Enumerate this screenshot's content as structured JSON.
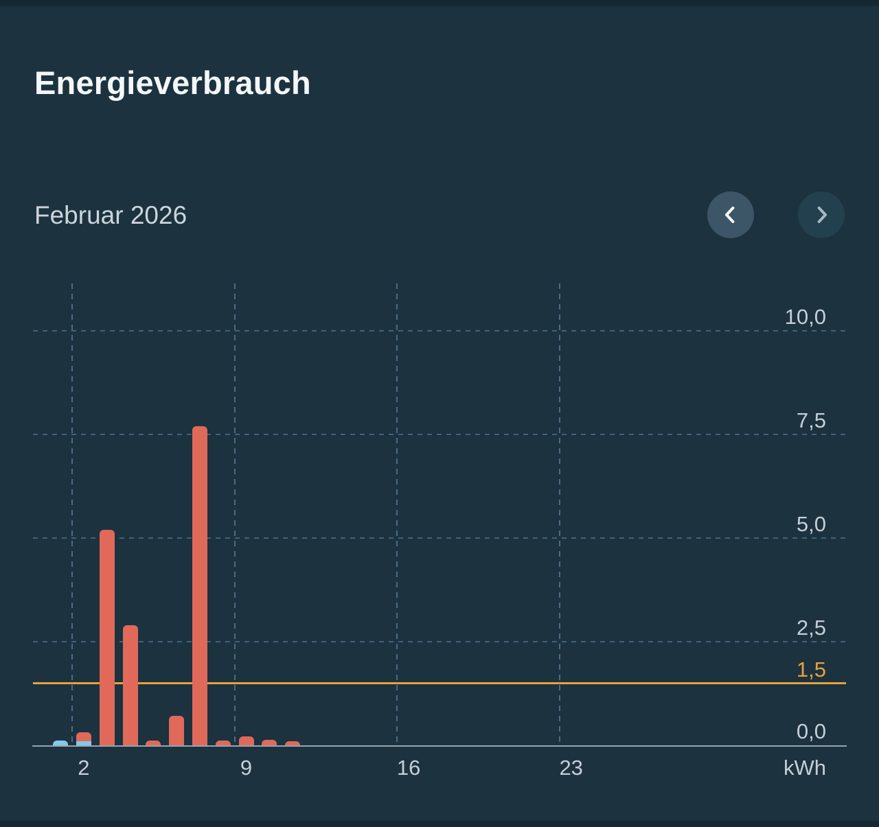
{
  "page": {
    "title": "Energieverbrauch"
  },
  "period": {
    "label": "Februar 2026",
    "prev_button": {
      "icon": "chevron-left",
      "enabled": true
    },
    "next_button": {
      "icon": "chevron-right",
      "enabled": false
    }
  },
  "colors": {
    "background": "#1c323f",
    "edge_strip": "#142833",
    "title_text": "#f3f7f9",
    "month_text": "#cbd5dc",
    "axis_text": "#c4cfd7",
    "grid_line": "#44617b",
    "grid_line_vertical": "#4d6b84",
    "axis_line": "#97a5ae",
    "threshold_line": "#e8a23c",
    "bar_red": "#e0695a",
    "bar_blue": "#87c7eb",
    "nav_active_bg": "#3c5668",
    "nav_active_icon": "#ffffff",
    "nav_inactive_bg": "#23404f",
    "nav_inactive_icon": "#a4bac5"
  },
  "chart_data": {
    "type": "bar",
    "stacked": true,
    "title": "Energieverbrauch",
    "period": "Februar 2026",
    "unit": "kWh",
    "ylim": [
      0,
      11.1
    ],
    "grid": true,
    "yticks": [
      {
        "value": 10.0,
        "label": "10,0"
      },
      {
        "value": 7.5,
        "label": "7,5"
      },
      {
        "value": 5.0,
        "label": "5,0"
      },
      {
        "value": 2.5,
        "label": "2,5"
      }
    ],
    "baseline": {
      "value": 0.0,
      "label": "0,0"
    },
    "threshold": {
      "value": 1.5,
      "label": "1,5"
    },
    "xticks_days": [
      2,
      9,
      16,
      23
    ],
    "days_in_month": 28,
    "bars": [
      {
        "day": 1,
        "segments": [
          {
            "series": "blue",
            "value": 0.12
          }
        ]
      },
      {
        "day": 2,
        "segments": [
          {
            "series": "blue",
            "value": 0.1
          },
          {
            "series": "red",
            "value": 0.22
          }
        ]
      },
      {
        "day": 3,
        "segments": [
          {
            "series": "red",
            "value": 5.2
          }
        ]
      },
      {
        "day": 4,
        "segments": [
          {
            "series": "red",
            "value": 2.9
          }
        ]
      },
      {
        "day": 5,
        "segments": [
          {
            "series": "red",
            "value": 0.12
          }
        ]
      },
      {
        "day": 6,
        "segments": [
          {
            "series": "red",
            "value": 0.72
          }
        ]
      },
      {
        "day": 7,
        "segments": [
          {
            "series": "red",
            "value": 7.7
          }
        ]
      },
      {
        "day": 8,
        "segments": [
          {
            "series": "red",
            "value": 0.12
          }
        ]
      },
      {
        "day": 9,
        "segments": [
          {
            "series": "red",
            "value": 0.22
          }
        ]
      },
      {
        "day": 10,
        "segments": [
          {
            "series": "red",
            "value": 0.13
          }
        ]
      },
      {
        "day": 11,
        "segments": [
          {
            "series": "red",
            "value": 0.1
          }
        ]
      }
    ]
  }
}
